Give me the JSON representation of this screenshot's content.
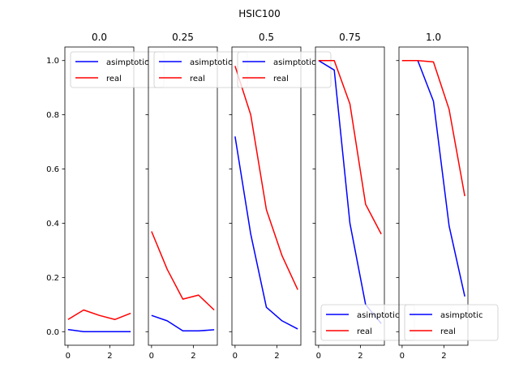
{
  "suptitle": "HSIC100",
  "chart_data": [
    {
      "type": "line",
      "title": "0.0",
      "x": [
        0,
        0.75,
        1.5,
        2.25,
        3
      ],
      "series": [
        {
          "name": "asimptotic",
          "color": "#0000ff",
          "values": [
            0.008,
            0.0,
            0.0,
            0.0,
            0.0
          ]
        },
        {
          "name": "real",
          "color": "#ff0000",
          "values": [
            0.045,
            0.08,
            0.06,
            0.045,
            0.068
          ]
        }
      ],
      "xlim": [
        -0.15,
        3.15
      ],
      "ylim": [
        -0.05,
        1.05
      ],
      "xticks": [
        0,
        2
      ],
      "yticks": [
        0.0,
        0.2,
        0.4,
        0.6,
        0.8,
        1.0
      ],
      "legend": "top-right"
    },
    {
      "type": "line",
      "title": "0.25",
      "x": [
        0,
        0.75,
        1.5,
        2.25,
        3
      ],
      "series": [
        {
          "name": "asimptotic",
          "color": "#0000ff",
          "values": [
            0.06,
            0.04,
            0.003,
            0.003,
            0.007
          ]
        },
        {
          "name": "real",
          "color": "#ff0000",
          "values": [
            0.37,
            0.23,
            0.12,
            0.135,
            0.08
          ]
        }
      ],
      "xlim": [
        -0.15,
        3.15
      ],
      "ylim": [
        -0.05,
        1.05
      ],
      "xticks": [
        0,
        2
      ],
      "yticks": [
        0.0,
        0.2,
        0.4,
        0.6,
        0.8,
        1.0
      ],
      "legend": "top-right"
    },
    {
      "type": "line",
      "title": "0.5",
      "x": [
        0,
        0.75,
        1.5,
        2.25,
        3
      ],
      "series": [
        {
          "name": "asimptotic",
          "color": "#0000ff",
          "values": [
            0.72,
            0.36,
            0.09,
            0.04,
            0.01
          ]
        },
        {
          "name": "real",
          "color": "#ff0000",
          "values": [
            0.98,
            0.8,
            0.45,
            0.28,
            0.155
          ]
        }
      ],
      "xlim": [
        -0.15,
        3.15
      ],
      "ylim": [
        -0.05,
        1.05
      ],
      "xticks": [
        0,
        2
      ],
      "yticks": [
        0.0,
        0.2,
        0.4,
        0.6,
        0.8,
        1.0
      ],
      "legend": "top-right"
    },
    {
      "type": "line",
      "title": "0.75",
      "x": [
        0,
        0.75,
        1.5,
        2.25,
        3
      ],
      "series": [
        {
          "name": "asimptotic",
          "color": "#0000ff",
          "values": [
            1.0,
            0.965,
            0.4,
            0.1,
            0.03
          ]
        },
        {
          "name": "real",
          "color": "#ff0000",
          "values": [
            1.0,
            1.0,
            0.84,
            0.47,
            0.36
          ]
        }
      ],
      "xlim": [
        -0.15,
        3.15
      ],
      "ylim": [
        -0.05,
        1.05
      ],
      "xticks": [
        0,
        2
      ],
      "yticks": [
        0.0,
        0.2,
        0.4,
        0.6,
        0.8,
        1.0
      ],
      "legend": "bottom-right"
    },
    {
      "type": "line",
      "title": "1.0",
      "x": [
        0,
        0.75,
        1.5,
        2.25,
        3
      ],
      "series": [
        {
          "name": "asimptotic",
          "color": "#0000ff",
          "values": [
            1.0,
            1.0,
            0.85,
            0.39,
            0.13
          ]
        },
        {
          "name": "real",
          "color": "#ff0000",
          "values": [
            1.0,
            1.0,
            0.995,
            0.82,
            0.5
          ]
        }
      ],
      "xlim": [
        -0.15,
        3.15
      ],
      "ylim": [
        -0.05,
        1.05
      ],
      "xticks": [
        0,
        2
      ],
      "yticks": [
        0.0,
        0.2,
        0.4,
        0.6,
        0.8,
        1.0
      ],
      "legend": "bottom-right"
    }
  ]
}
